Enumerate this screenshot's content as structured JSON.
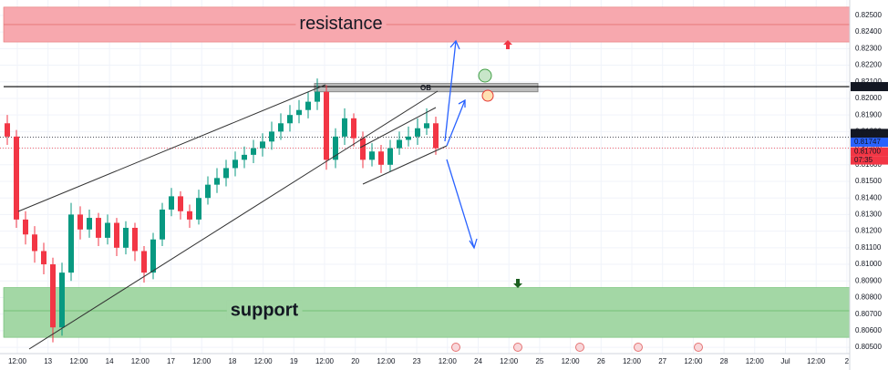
{
  "chart_data": {
    "type": "candlestick",
    "open": [
      0.8185,
      0.8177,
      0.8127,
      0.8118,
      0.8108,
      0.81,
      0.8062,
      0.8095,
      0.813,
      0.8121,
      0.8128,
      0.8116,
      0.8125,
      0.811,
      0.8122,
      0.8108,
      0.8095,
      0.8115,
      0.8133,
      0.8141,
      0.8132,
      0.8127,
      0.814,
      0.8148,
      0.8152,
      0.8158,
      0.8163,
      0.8166,
      0.817,
      0.8174,
      0.818,
      0.8185,
      0.819,
      0.8193,
      0.8198,
      0.8204,
      0.8163,
      0.8177,
      0.8188,
      0.8176,
      0.8163,
      0.8168,
      0.816,
      0.817,
      0.8175,
      0.8177,
      0.8182,
      0.8185
    ],
    "high": [
      0.819,
      0.8181,
      0.8132,
      0.8123,
      0.8113,
      0.8104,
      0.8101,
      0.8137,
      0.8135,
      0.8133,
      0.8131,
      0.813,
      0.8128,
      0.8126,
      0.8125,
      0.8111,
      0.8119,
      0.8137,
      0.8146,
      0.8144,
      0.8136,
      0.8145,
      0.8153,
      0.8158,
      0.8163,
      0.8168,
      0.8171,
      0.8175,
      0.8179,
      0.8186,
      0.8191,
      0.8196,
      0.8199,
      0.8204,
      0.8212,
      0.8208,
      0.8182,
      0.8194,
      0.8191,
      0.818,
      0.8173,
      0.8172,
      0.8175,
      0.818,
      0.8183,
      0.8188,
      0.8194,
      0.8189
    ],
    "low": [
      0.8172,
      0.8122,
      0.8112,
      0.8101,
      0.8094,
      0.8053,
      0.8057,
      0.809,
      0.8115,
      0.8116,
      0.8111,
      0.8112,
      0.8105,
      0.8106,
      0.8102,
      0.8089,
      0.8091,
      0.8111,
      0.8129,
      0.8127,
      0.8122,
      0.8124,
      0.8136,
      0.8143,
      0.8147,
      0.8153,
      0.8158,
      0.8161,
      0.8165,
      0.8169,
      0.8175,
      0.818,
      0.8185,
      0.8188,
      0.8193,
      0.8157,
      0.8158,
      0.8172,
      0.8171,
      0.8158,
      0.8159,
      0.8155,
      0.8156,
      0.8166,
      0.8171,
      0.8172,
      0.8178,
      0.8166
    ],
    "close": [
      0.8177,
      0.8127,
      0.8118,
      0.8108,
      0.81,
      0.8062,
      0.8095,
      0.813,
      0.8121,
      0.8128,
      0.8116,
      0.8125,
      0.811,
      0.8122,
      0.8108,
      0.8095,
      0.8115,
      0.8133,
      0.8141,
      0.8132,
      0.8127,
      0.814,
      0.8148,
      0.8152,
      0.8158,
      0.8163,
      0.8166,
      0.817,
      0.8174,
      0.818,
      0.8185,
      0.819,
      0.8193,
      0.8198,
      0.8204,
      0.8163,
      0.8177,
      0.8188,
      0.8176,
      0.8163,
      0.8168,
      0.816,
      0.817,
      0.8175,
      0.8177,
      0.8182,
      0.8185,
      0.817
    ],
    "up_color": "#089981",
    "down_color": "#f23645",
    "ylim": [
      0.80462,
      0.82593
    ],
    "yticks": [
      {
        "value": 0.805,
        "label": "0.80500"
      },
      {
        "value": 0.806,
        "label": "0.80600"
      },
      {
        "value": 0.807,
        "label": "0.80700"
      },
      {
        "value": 0.808,
        "label": "0.80800"
      },
      {
        "value": 0.809,
        "label": "0.80900"
      },
      {
        "value": 0.81,
        "label": "0.81000"
      },
      {
        "value": 0.811,
        "label": "0.81100"
      },
      {
        "value": 0.812,
        "label": "0.81200"
      },
      {
        "value": 0.813,
        "label": "0.81300"
      },
      {
        "value": 0.814,
        "label": "0.81400"
      },
      {
        "value": 0.815,
        "label": "0.81500"
      },
      {
        "value": 0.816,
        "label": "0.81600"
      },
      {
        "value": 0.817,
        "label": "0.81700"
      },
      {
        "value": 0.818,
        "label": "0.81800"
      },
      {
        "value": 0.819,
        "label": "0.81900"
      },
      {
        "value": 0.82,
        "label": "0.82000"
      },
      {
        "value": 0.821,
        "label": "0.82100"
      },
      {
        "value": 0.822,
        "label": "0.82200"
      },
      {
        "value": 0.823,
        "label": "0.82300"
      },
      {
        "value": 0.824,
        "label": "0.82400"
      },
      {
        "value": 0.825,
        "label": "0.82500"
      }
    ],
    "xlabels": [
      "12:00",
      "13",
      "12:00",
      "14",
      "12:00",
      "17",
      "12:00",
      "18",
      "12:00",
      "19",
      "12:00",
      "20",
      "12:00",
      "23",
      "12:00",
      "24",
      "12:00",
      "25",
      "12:00",
      "26",
      "12:00",
      "27",
      "12:00",
      "28",
      "12:00",
      "Jul",
      "12:00",
      "2"
    ],
    "grid": true,
    "zones": [
      {
        "label": "resistance",
        "range": [
          0.8234,
          0.8255
        ],
        "mid": 0.82445,
        "color": "#f7a8ae",
        "line": "#e57373",
        "text_color": "#f0616c"
      },
      {
        "label": "support",
        "range": [
          0.8056,
          0.8086
        ],
        "mid": 0.8072,
        "color": "#a3d7a5",
        "line": "#66bb6a",
        "text_color": "#1b5e20"
      }
    ],
    "level": {
      "value": 0.82071,
      "color": "#000000"
    },
    "ob": {
      "label": "OB",
      "range": [
        0.8204,
        0.8209
      ]
    },
    "price_labels": [
      {
        "value": 0.82071,
        "color": "#131722"
      },
      {
        "value": 0.81767,
        "color": "#131722"
      },
      {
        "value": 0.81747,
        "color": "#2962ff"
      },
      {
        "value": 0.817,
        "label": "0.81700",
        "color": "#f23645"
      }
    ],
    "countdown": "07:35"
  }
}
